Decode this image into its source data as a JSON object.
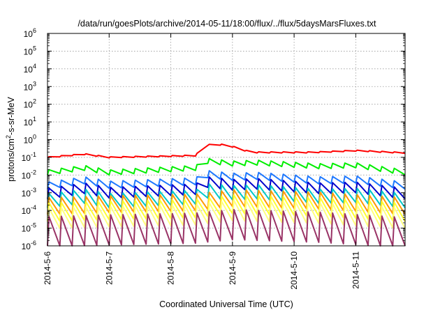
{
  "chart_data": {
    "type": "line",
    "title": "/data/run/goesPlots/archive/2014-05-11/18:00/flux/../flux/5daysMarsFluxes.txt",
    "xlabel": "Coordinated Universal Time (UTC)",
    "ylabel": {
      "prefix": "protons/cm",
      "sup": "2",
      "suffix": "-s-sr-MeV"
    },
    "yscale": "log",
    "ylim_exp": [
      -6,
      6
    ],
    "y_ticks": [
      {
        "base": "10",
        "exp": "-6",
        "e": -6
      },
      {
        "base": "10",
        "exp": "-5",
        "e": -5
      },
      {
        "base": "10",
        "exp": "-4",
        "e": -4
      },
      {
        "base": "10",
        "exp": "-3",
        "e": -3
      },
      {
        "base": "10",
        "exp": "-2",
        "e": -2
      },
      {
        "base": "10",
        "exp": "-1",
        "e": -1
      },
      {
        "base": "10",
        "exp": "0",
        "e": 0
      },
      {
        "base": "10",
        "exp": "1",
        "e": 1
      },
      {
        "base": "10",
        "exp": "2",
        "e": 2
      },
      {
        "base": "10",
        "exp": "3",
        "e": 3
      },
      {
        "base": "10",
        "exp": "4",
        "e": 4
      },
      {
        "base": "10",
        "exp": "5",
        "e": 5
      },
      {
        "base": "10",
        "exp": "6",
        "e": 6
      }
    ],
    "x_ticks": [
      "2014-5-6",
      "2014-5-7",
      "2014-5-8",
      "2014-5-9",
      "2014-5-10",
      "2014-5-11"
    ],
    "xlim_days": [
      0,
      5.8
    ],
    "grid": true,
    "legend": "none",
    "series": [
      {
        "color": "#ff0000",
        "period": 0.2,
        "jump": 0.06,
        "base_log": [
          [
            0,
            -1.0
          ],
          [
            0.6,
            -0.82
          ],
          [
            1.0,
            -1.0
          ],
          [
            2.4,
            -0.9
          ],
          [
            2.55,
            -0.3
          ],
          [
            2.9,
            -0.28
          ],
          [
            3.3,
            -0.72
          ],
          [
            4.3,
            -0.72
          ],
          [
            5.0,
            -0.62
          ],
          [
            5.8,
            -0.75
          ]
        ]
      },
      {
        "color": "#00ee00",
        "period": 0.2,
        "jump": 0.28,
        "base_log": [
          [
            0,
            -1.85
          ],
          [
            0.6,
            -1.6
          ],
          [
            1.0,
            -1.85
          ],
          [
            2.4,
            -1.6
          ],
          [
            2.6,
            -1.2
          ],
          [
            3.0,
            -1.35
          ],
          [
            3.4,
            -1.3
          ],
          [
            4.4,
            -1.5
          ],
          [
            5.0,
            -1.45
          ],
          [
            5.8,
            -1.85
          ]
        ]
      },
      {
        "color": "#1e78ff",
        "period": 0.2,
        "jump": 0.4,
        "base_log": [
          [
            0,
            -2.6
          ],
          [
            0.6,
            -2.3
          ],
          [
            1.0,
            -2.55
          ],
          [
            2.4,
            -2.35
          ],
          [
            2.6,
            -1.95
          ],
          [
            3.0,
            -2.1
          ],
          [
            3.4,
            -2.05
          ],
          [
            4.4,
            -2.3
          ],
          [
            5.0,
            -2.25
          ],
          [
            5.8,
            -2.6
          ]
        ]
      },
      {
        "color": "#0000cc",
        "period": 0.2,
        "jump": 0.6,
        "base_log": [
          [
            0,
            -3.05
          ],
          [
            0.6,
            -2.75
          ],
          [
            1.0,
            -3.0
          ],
          [
            2.4,
            -2.8
          ],
          [
            2.6,
            -2.4
          ],
          [
            3.0,
            -2.55
          ],
          [
            3.4,
            -2.5
          ],
          [
            4.4,
            -2.75
          ],
          [
            5.0,
            -2.7
          ],
          [
            5.8,
            -3.05
          ]
        ]
      },
      {
        "color": "#00c8c8",
        "period": 0.2,
        "jump": 0.8,
        "base_log": [
          [
            0,
            -3.45
          ],
          [
            0.6,
            -3.2
          ],
          [
            1.0,
            -3.45
          ],
          [
            2.4,
            -3.25
          ],
          [
            2.6,
            -2.9
          ],
          [
            3.0,
            -3.0
          ],
          [
            3.4,
            -2.95
          ],
          [
            4.4,
            -3.2
          ],
          [
            5.0,
            -3.15
          ],
          [
            5.8,
            -3.45
          ]
        ]
      },
      {
        "color": "#ff9900",
        "period": 0.2,
        "jump": 0.95,
        "base_log": [
          [
            0,
            -3.75
          ],
          [
            1.0,
            -3.65
          ],
          [
            2.4,
            -3.55
          ],
          [
            3.0,
            -3.3
          ],
          [
            4.4,
            -3.45
          ],
          [
            5.8,
            -3.75
          ]
        ]
      },
      {
        "color": "#ffff30",
        "period": 0.2,
        "jump": 1.05,
        "base_log": [
          [
            0,
            -4.1
          ],
          [
            1.0,
            -4.0
          ],
          [
            2.4,
            -3.9
          ],
          [
            3.0,
            -3.65
          ],
          [
            4.4,
            -3.8
          ],
          [
            5.8,
            -4.1
          ]
        ]
      },
      {
        "color": "#ffff80",
        "period": 0.2,
        "jump": 1.15,
        "base_log": [
          [
            0,
            -4.45
          ],
          [
            1.0,
            -4.35
          ],
          [
            2.4,
            -4.25
          ],
          [
            3.0,
            -4.0
          ],
          [
            4.4,
            -4.15
          ],
          [
            5.8,
            -4.45
          ]
        ]
      },
      {
        "color": "#993366",
        "period": 0.2,
        "jump": 1.7,
        "base_log": [
          [
            0,
            -5.2
          ],
          [
            1.0,
            -5.1
          ],
          [
            2.4,
            -5.0
          ],
          [
            3.0,
            -4.8
          ],
          [
            4.4,
            -4.95
          ],
          [
            5.8,
            -5.25
          ]
        ]
      }
    ]
  }
}
